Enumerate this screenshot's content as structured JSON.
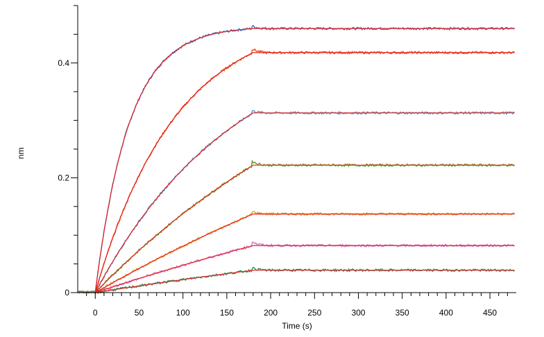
{
  "chart_data": {
    "type": "line",
    "title": "",
    "xlabel": "Time (s)",
    "ylabel": "nm",
    "xlim": [
      -20,
      480
    ],
    "ylim": [
      0,
      0.5
    ],
    "x_ticks": [
      0,
      50,
      100,
      150,
      200,
      250,
      300,
      350,
      400,
      450
    ],
    "x_tick_labels": [
      "0",
      "50",
      "100",
      "150",
      "200",
      "250",
      "300",
      "350",
      "400",
      "450"
    ],
    "y_ticks": [
      0,
      0.2,
      0.4
    ],
    "y_tick_labels": [
      "0",
      "0.2",
      "0.4"
    ],
    "grid": false,
    "association_end": 180,
    "fit_color": "#e8231e",
    "series": [
      {
        "plateau": 0.46,
        "rate": 0.026,
        "color": "#3a6fc4"
      },
      {
        "plateau": 0.418,
        "rate": 0.0109,
        "color": "#e8511e"
      },
      {
        "plateau": 0.313,
        "rate": 0.0062,
        "color": "#4f97c9"
      },
      {
        "plateau": 0.222,
        "rate": 0.0029,
        "color": "#6a9a2a"
      },
      {
        "plateau": 0.137,
        "rate": 0.0016,
        "color": "#e8962a"
      },
      {
        "plateau": 0.082,
        "rate": 0.0012,
        "color": "#d177c9"
      },
      {
        "plateau": 0.039,
        "rate": 0.0012,
        "color": "#2f8a5a"
      }
    ]
  }
}
